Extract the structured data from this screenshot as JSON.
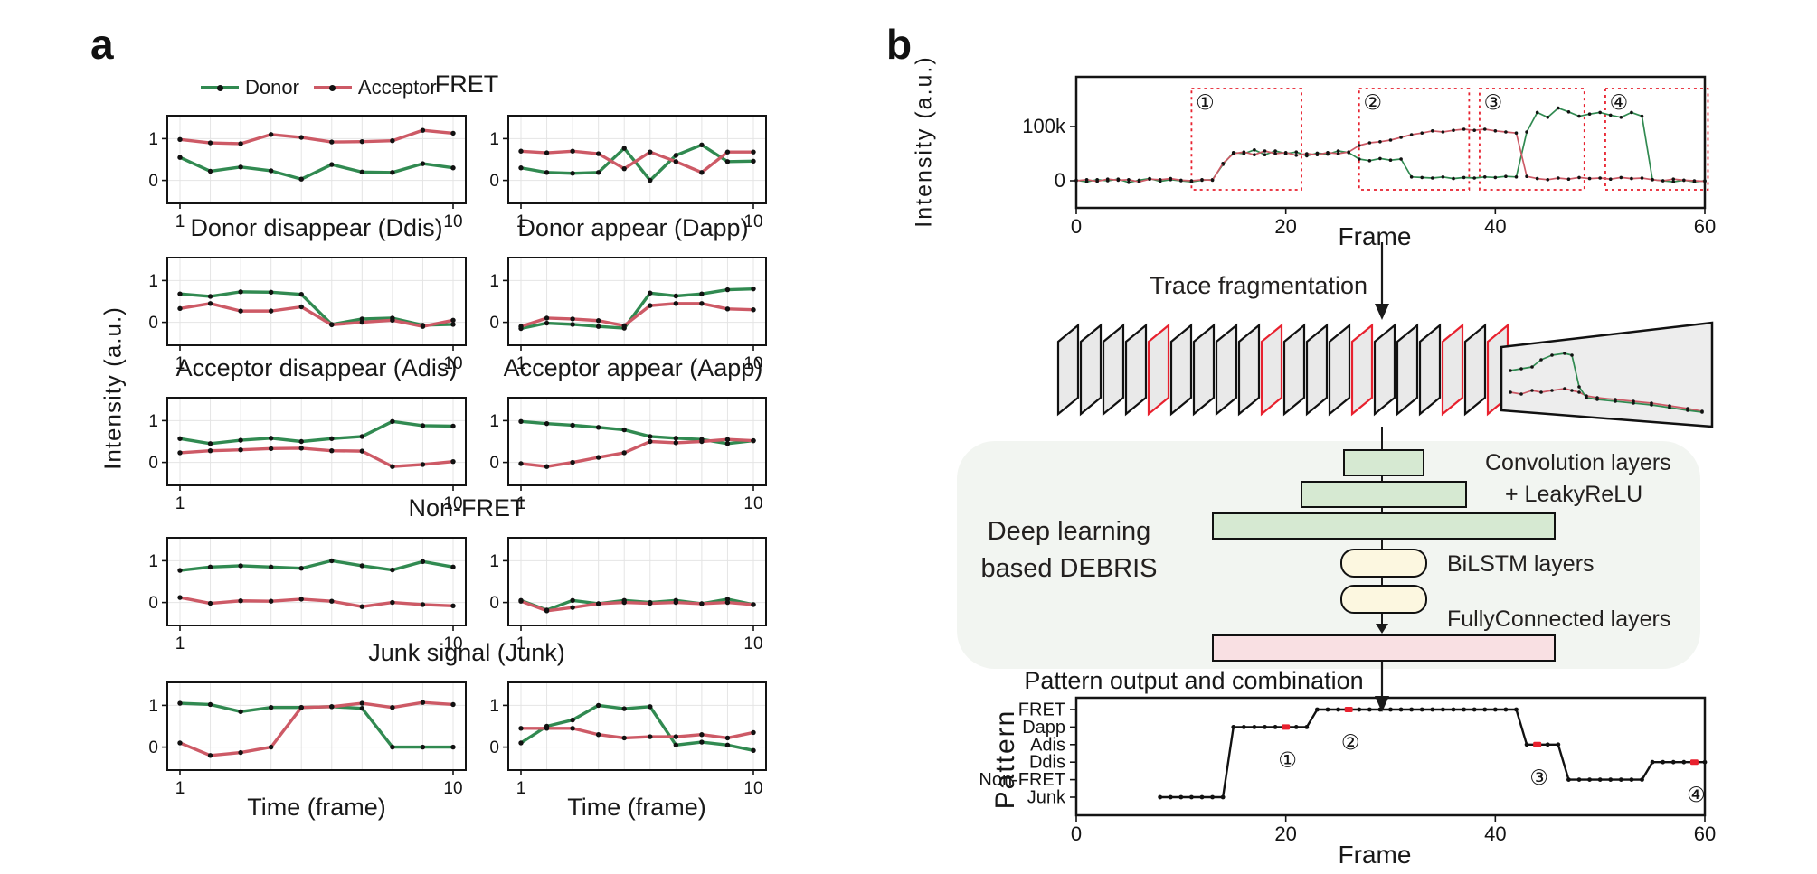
{
  "figure": {
    "panel_a": {
      "label": "a",
      "ylabel": "Intensity (a.u.)",
      "xlabel_col1": "Time (frame)",
      "xlabel_col2": "Time (frame)",
      "legend": [
        {
          "label": "Donor",
          "color": "#318a51"
        },
        {
          "label": "Acceptor",
          "color": "#cd5a66"
        }
      ],
      "rows": [
        {
          "title_center": "FRET"
        },
        {
          "title_left": "Donor disappear (Ddis)",
          "title_right": "Donor appear (Dapp)"
        },
        {
          "title_left": "Acceptor disappear (Adis)",
          "title_right": "Acceptor appear (Aapp)"
        },
        {
          "title_center": "Non-FRET"
        },
        {
          "title_center": "Junk signal (Junk)"
        }
      ]
    },
    "panel_b": {
      "label": "b",
      "fragmentation": {
        "label": "Trace fragmentation",
        "card_count": 20,
        "red_card_indices": [
          4,
          9,
          13,
          17,
          19
        ],
        "card_fill": "#e9e9e9",
        "front_card_fill": "#ededed",
        "front_trace": {
          "donor": [
            [
              510,
              60
            ],
            [
              522,
              58
            ],
            [
              534,
              56
            ],
            [
              544,
              48
            ],
            [
              556,
              43
            ],
            [
              570,
              41
            ],
            [
              578,
              43
            ],
            [
              586,
              78
            ],
            [
              594,
              90
            ],
            [
              606,
              92
            ],
            [
              626,
              94
            ],
            [
              646,
              96
            ],
            [
              666,
              98
            ],
            [
              686,
              101
            ],
            [
              706,
              104
            ],
            [
              722,
              106
            ]
          ],
          "acceptor": [
            [
              510,
              84
            ],
            [
              522,
              86
            ],
            [
              534,
              82
            ],
            [
              544,
              84
            ],
            [
              556,
              82
            ],
            [
              570,
              80
            ],
            [
              578,
              82
            ],
            [
              586,
              84
            ],
            [
              594,
              88
            ],
            [
              606,
              90
            ],
            [
              626,
              92
            ],
            [
              646,
              94
            ],
            [
              666,
              96
            ],
            [
              686,
              99
            ],
            [
              706,
              102
            ],
            [
              722,
              105
            ]
          ]
        }
      },
      "debris": {
        "title_line1": "Deep learning",
        "title_line2": "based DEBRIS",
        "conv_label_line1": "Convolution layers",
        "conv_label_line2": "+ LeakyReLU",
        "bilstm_label": "BiLSTM layers",
        "fc_label": "FullyConnected layers",
        "container_color": "#f2f5f1",
        "conv_color": "#d6e9d2",
        "bilstm_color": "#fcf7e0",
        "fc_color": "#f9e0e3"
      },
      "pattern_section_title": "Pattern output and combination"
    }
  },
  "chart_data": {
    "colors": {
      "donor": "#318a51",
      "acceptor": "#cd5a66",
      "marker": "#111111",
      "accent_red": "#e8212e"
    },
    "mini_axis": {
      "ylim": [
        -0.55,
        1.55
      ],
      "y_gridlines": [
        0,
        1
      ],
      "y_tick_labels": [
        "1",
        "0"
      ],
      "y_tick_values": [
        1,
        0
      ],
      "x_tick_labels": [
        "1",
        "10"
      ],
      "grid": true
    },
    "mini": [
      {
        "type": "line",
        "title": "FRET",
        "position": "row1-left",
        "x": [
          1,
          2,
          3,
          4,
          5,
          6,
          7,
          8,
          9,
          10
        ],
        "donor": [
          0.55,
          0.22,
          0.32,
          0.23,
          0.03,
          0.38,
          0.2,
          0.19,
          0.4,
          0.3
        ],
        "acceptor": [
          0.98,
          0.9,
          0.88,
          1.1,
          1.03,
          0.92,
          0.93,
          0.95,
          1.2,
          1.13
        ]
      },
      {
        "type": "line",
        "title": "FRET",
        "position": "row1-right",
        "x": [
          1,
          2,
          3,
          4,
          5,
          6,
          7,
          8,
          9,
          10
        ],
        "donor": [
          0.3,
          0.19,
          0.17,
          0.19,
          0.77,
          0.0,
          0.6,
          0.85,
          0.45,
          0.46
        ],
        "acceptor": [
          0.7,
          0.66,
          0.7,
          0.64,
          0.28,
          0.68,
          0.45,
          0.19,
          0.68,
          0.68
        ]
      },
      {
        "type": "line",
        "title": "Donor disappear (Ddis)",
        "position": "row2-left",
        "x": [
          1,
          2,
          3,
          4,
          5,
          6,
          7,
          8,
          9,
          10
        ],
        "donor": [
          0.68,
          0.62,
          0.73,
          0.72,
          0.67,
          -0.05,
          0.08,
          0.1,
          -0.07,
          -0.05
        ],
        "acceptor": [
          0.33,
          0.45,
          0.27,
          0.27,
          0.37,
          -0.06,
          0.0,
          0.05,
          -0.1,
          0.05
        ]
      },
      {
        "type": "line",
        "title": "Donor appear (Dapp)",
        "position": "row2-right",
        "x": [
          1,
          2,
          3,
          4,
          5,
          6,
          7,
          8,
          9,
          10
        ],
        "donor": [
          -0.15,
          -0.02,
          -0.05,
          -0.1,
          -0.14,
          0.7,
          0.63,
          0.68,
          0.78,
          0.8
        ],
        "acceptor": [
          -0.1,
          0.1,
          0.08,
          0.04,
          -0.08,
          0.4,
          0.45,
          0.45,
          0.32,
          0.3
        ]
      },
      {
        "type": "line",
        "title": "Acceptor disappear (Adis)",
        "position": "row3-left",
        "x": [
          1,
          2,
          3,
          4,
          5,
          6,
          7,
          8,
          9,
          10
        ],
        "donor": [
          0.57,
          0.45,
          0.53,
          0.58,
          0.5,
          0.57,
          0.62,
          0.98,
          0.88,
          0.87
        ],
        "acceptor": [
          0.23,
          0.28,
          0.3,
          0.33,
          0.34,
          0.28,
          0.27,
          -0.1,
          -0.05,
          0.02
        ]
      },
      {
        "type": "line",
        "title": "Acceptor appear (Aapp)",
        "position": "row3-right",
        "x": [
          1,
          2,
          3,
          4,
          5,
          6,
          7,
          8,
          9,
          10
        ],
        "donor": [
          0.98,
          0.93,
          0.89,
          0.84,
          0.78,
          0.62,
          0.58,
          0.55,
          0.45,
          0.52
        ],
        "acceptor": [
          -0.03,
          -0.1,
          0.0,
          0.12,
          0.23,
          0.5,
          0.47,
          0.5,
          0.55,
          0.52
        ]
      },
      {
        "type": "line",
        "title": "Non-FRET",
        "position": "row4-left",
        "x": [
          1,
          2,
          3,
          4,
          5,
          6,
          7,
          8,
          9,
          10
        ],
        "donor": [
          0.77,
          0.85,
          0.88,
          0.85,
          0.82,
          1.0,
          0.88,
          0.78,
          0.98,
          0.85
        ],
        "acceptor": [
          0.12,
          -0.02,
          0.04,
          0.03,
          0.08,
          0.03,
          -0.1,
          0.0,
          -0.05,
          -0.08
        ]
      },
      {
        "type": "line",
        "title": "Non-FRET",
        "position": "row4-right",
        "x": [
          1,
          2,
          3,
          4,
          5,
          6,
          7,
          8,
          9,
          10
        ],
        "donor": [
          0.05,
          -0.18,
          0.05,
          -0.03,
          0.05,
          0.0,
          0.05,
          -0.03,
          0.08,
          -0.05
        ],
        "acceptor": [
          0.03,
          -0.2,
          -0.12,
          -0.03,
          0.0,
          -0.02,
          0.0,
          -0.03,
          0.0,
          -0.05
        ]
      },
      {
        "type": "line",
        "title": "Junk signal (Junk)",
        "position": "row5-left",
        "x": [
          1,
          2,
          3,
          4,
          5,
          6,
          7,
          8,
          9,
          10
        ],
        "donor": [
          1.05,
          1.02,
          0.85,
          0.95,
          0.95,
          0.97,
          0.93,
          0.0,
          0.0,
          0.0
        ],
        "acceptor": [
          0.1,
          -0.2,
          -0.13,
          0.0,
          0.95,
          0.97,
          1.05,
          0.95,
          1.07,
          1.02
        ]
      },
      {
        "type": "line",
        "title": "Junk signal (Junk)",
        "position": "row5-right",
        "x": [
          1,
          2,
          3,
          4,
          5,
          6,
          7,
          8,
          9,
          10
        ],
        "donor": [
          0.1,
          0.5,
          0.65,
          1.0,
          0.92,
          0.97,
          0.05,
          0.12,
          0.05,
          -0.08
        ],
        "acceptor": [
          0.45,
          0.45,
          0.45,
          0.3,
          0.22,
          0.25,
          0.25,
          0.3,
          0.22,
          0.35
        ]
      }
    ],
    "trace": {
      "type": "line",
      "xlabel": "Frame",
      "ylabel": "Intensity (a.u.)",
      "xlim": [
        0,
        60
      ],
      "x_ticks": [
        0,
        20,
        40,
        60
      ],
      "y_ticks": [
        {
          "label": "100k",
          "value_k": 100
        },
        {
          "label": "0",
          "value_k": 0
        }
      ],
      "series": [
        {
          "name": "Donor",
          "values_k": [
            1,
            -2,
            2,
            0,
            3,
            -3,
            1,
            4,
            -1,
            2,
            0,
            -2,
            1,
            2,
            30,
            52,
            50,
            57,
            48,
            55,
            50,
            53,
            46,
            51,
            49,
            55,
            52,
            40,
            37,
            41,
            38,
            40,
            7,
            6,
            5,
            7,
            4,
            6,
            5,
            7,
            6,
            8,
            7,
            90,
            126,
            117,
            134,
            127,
            119,
            123,
            126,
            121,
            117,
            126,
            119,
            2,
            0,
            -2,
            1,
            -2,
            0
          ]
        },
        {
          "name": "Acceptor",
          "values_k": [
            0,
            2,
            -1,
            3,
            1,
            2,
            -2,
            3,
            2,
            4,
            1,
            0,
            2,
            1,
            32,
            50,
            53,
            48,
            55,
            50,
            52,
            47,
            50,
            48,
            52,
            50,
            53,
            65,
            70,
            72,
            75,
            80,
            85,
            88,
            92,
            90,
            93,
            95,
            93,
            95,
            92,
            90,
            88,
            8,
            4,
            2,
            5,
            3,
            6,
            4,
            5,
            3,
            6,
            4,
            5,
            2,
            0,
            3,
            1,
            0,
            -1
          ]
        }
      ],
      "boxes": [
        {
          "glyph": "①",
          "from": 11,
          "to": 21.5
        },
        {
          "glyph": "②",
          "from": 27,
          "to": 37.5
        },
        {
          "glyph": "③",
          "from": 38.5,
          "to": 48.5
        },
        {
          "glyph": "④",
          "from": 50.5,
          "to": 60.3
        }
      ]
    },
    "pattern": {
      "type": "step",
      "xlabel": "Frame",
      "ylabel": "Pattern",
      "xlim": [
        0,
        60
      ],
      "x_ticks": [
        0,
        20,
        40,
        60
      ],
      "categories": [
        "FRET",
        "Dapp",
        "Adis",
        "Ddis",
        "Non-FRET",
        "Junk"
      ],
      "segments": [
        {
          "category": "Junk",
          "from": 8,
          "to": 14
        },
        {
          "category": "Dapp",
          "from": 15,
          "to": 22
        },
        {
          "category": "FRET",
          "from": 23,
          "to": 42
        },
        {
          "category": "Adis",
          "from": 43,
          "to": 46
        },
        {
          "category": "Non-FRET",
          "from": 47,
          "to": 54
        },
        {
          "category": "Ddis",
          "from": 55,
          "to": 60
        }
      ],
      "markers": [
        {
          "glyph": "①",
          "frame": 20,
          "category": "Dapp"
        },
        {
          "glyph": "②",
          "frame": 26,
          "category": "FRET"
        },
        {
          "glyph": "③",
          "frame": 44,
          "category": "Adis"
        },
        {
          "glyph": "④",
          "frame": 59,
          "category": "Ddis"
        }
      ]
    }
  }
}
